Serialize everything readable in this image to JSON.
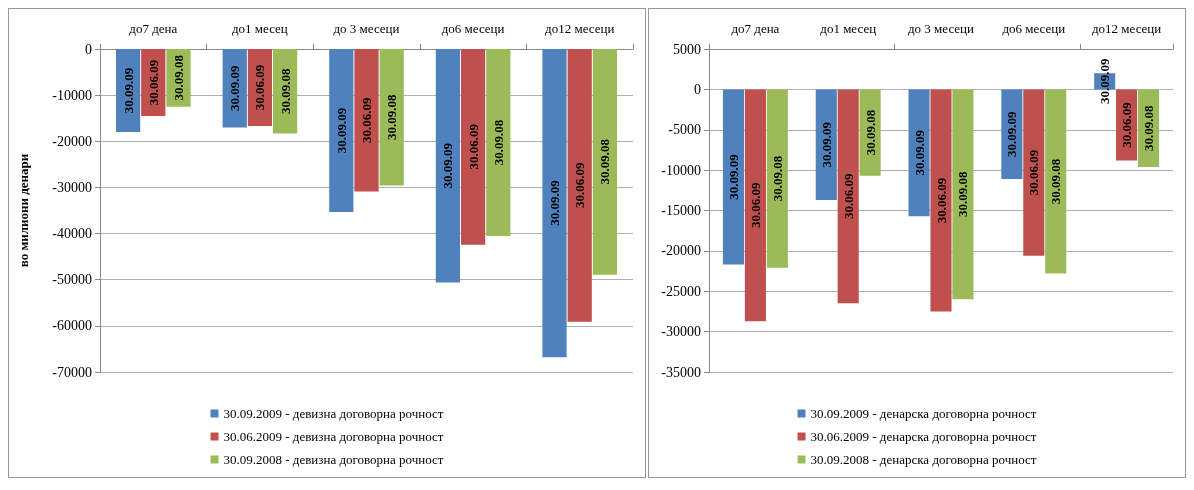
{
  "chart_data": [
    {
      "type": "bar",
      "ylabel": "во милиони денари",
      "categories": [
        "до7 дена",
        "до1 месец",
        "до 3 месеци",
        "до6 месеци",
        "до12 месеци"
      ],
      "series": [
        {
          "name": "30.09.2009 - девизна договорна рочност",
          "color": "#4f81bd",
          "values": [
            -18000,
            -17000,
            -35300,
            -50600,
            -66800
          ],
          "value_labels": [
            "30.09.09",
            "30.09.09",
            "30.09.09",
            "30.09.09",
            "30.09.09"
          ]
        },
        {
          "name": "30.06.2009 - девизна договорна рочност",
          "color": "#c0504d",
          "values": [
            -14500,
            -16700,
            -30900,
            -42400,
            -59100
          ],
          "value_labels": [
            "30.06.09",
            "30.06.09",
            "30.06.09",
            "30.06.09",
            "30.06.09"
          ]
        },
        {
          "name": "30.09.2008 - девизна договорна рочност",
          "color": "#9bbb59",
          "values": [
            -12500,
            -18300,
            -29600,
            -40500,
            -48900
          ],
          "value_labels": [
            "30.09.08",
            "30.09.08",
            "30.09.08",
            "30.09.08",
            "30.09.08"
          ]
        }
      ],
      "ylim": [
        -70000,
        0
      ],
      "yticks": [
        -70000,
        -60000,
        -50000,
        -40000,
        -30000,
        -20000,
        -10000,
        0
      ],
      "grid": "y",
      "legend": "bottom"
    },
    {
      "type": "bar",
      "categories": [
        "до7 дена",
        "до1 месец",
        "до 3 месеци",
        "до6 месеци",
        "до12 месеци"
      ],
      "series": [
        {
          "name": "30.09.2009 - денарска договорна рочност",
          "color": "#4f81bd",
          "values": [
            -21700,
            -13700,
            -15700,
            -11100,
            2000
          ],
          "value_labels": [
            "30.09.09",
            "30.09.09",
            "30.09.09",
            "30.09.09",
            "30.09.09"
          ]
        },
        {
          "name": "30.06.2009 - денарска договорна рочност",
          "color": "#c0504d",
          "values": [
            -28700,
            -26500,
            -27500,
            -20600,
            -8800
          ],
          "value_labels": [
            "30.06.09",
            "30.06.09",
            "30.06.09",
            "30.06.09",
            "30.06.09"
          ]
        },
        {
          "name": "30.09.2008 - денарска договорна рочност",
          "color": "#9bbb59",
          "values": [
            -22100,
            -10700,
            -26000,
            -22800,
            -9600
          ],
          "value_labels": [
            "30.09.08",
            "30.09.08",
            "30.09.08",
            "30.09.08",
            "30.09.08"
          ]
        }
      ],
      "ylim": [
        -35000,
        5000
      ],
      "yticks": [
        -35000,
        -30000,
        -25000,
        -20000,
        -15000,
        -10000,
        -5000,
        0,
        5000
      ],
      "grid": "y",
      "legend": "bottom"
    }
  ]
}
